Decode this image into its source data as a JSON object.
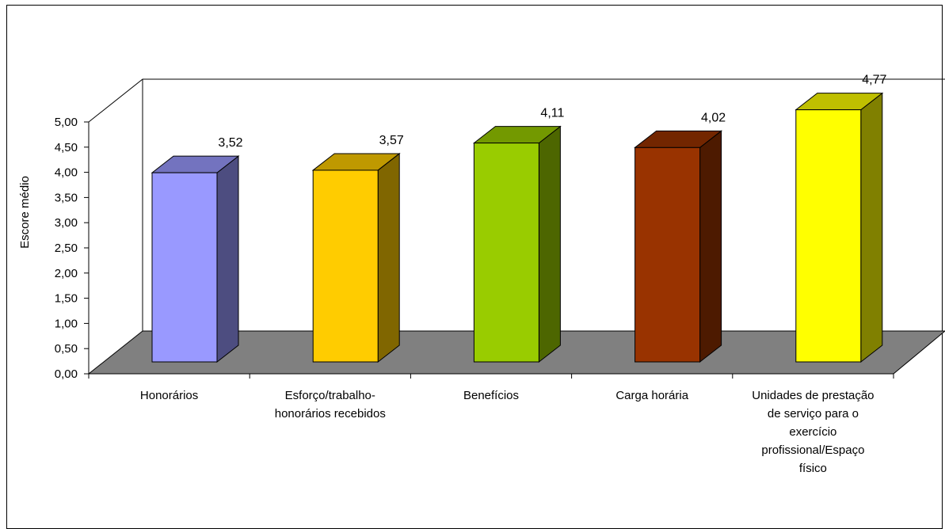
{
  "chart_data": {
    "type": "bar",
    "title": "",
    "xlabel": "",
    "ylabel": "Escore médio",
    "ylim": [
      0,
      5
    ],
    "yticks": [
      "0,00",
      "0,50",
      "1,00",
      "1,50",
      "2,00",
      "2,50",
      "3,00",
      "3,50",
      "4,00",
      "4,50",
      "5,00"
    ],
    "three_d": true,
    "grid": false,
    "legend": "none",
    "categories": [
      [
        "Honorários"
      ],
      [
        "Esforço/trabalho-",
        "honorários recebidos"
      ],
      [
        "Benefícios"
      ],
      [
        "Carga horária"
      ],
      [
        "Unidades de prestação",
        "de serviço para o",
        "exercício",
        "profissional/Espaço",
        "físico"
      ]
    ],
    "values": [
      3.52,
      3.57,
      4.11,
      4.02,
      4.77
    ],
    "value_labels": [
      "3,52",
      "3,57",
      "4,11",
      "4,02",
      "4,77"
    ],
    "bar_colors": [
      {
        "front": "#9999ff",
        "top": "#7373bf",
        "side": "#4d4d80"
      },
      {
        "front": "#ffcc00",
        "top": "#bf9900",
        "side": "#806600"
      },
      {
        "front": "#99cc00",
        "top": "#739900",
        "side": "#4d6600"
      },
      {
        "front": "#993300",
        "top": "#732600",
        "side": "#4d1a00"
      },
      {
        "front": "#ffff00",
        "top": "#bfbf00",
        "side": "#808000"
      }
    ],
    "floor_color": "#808080"
  }
}
